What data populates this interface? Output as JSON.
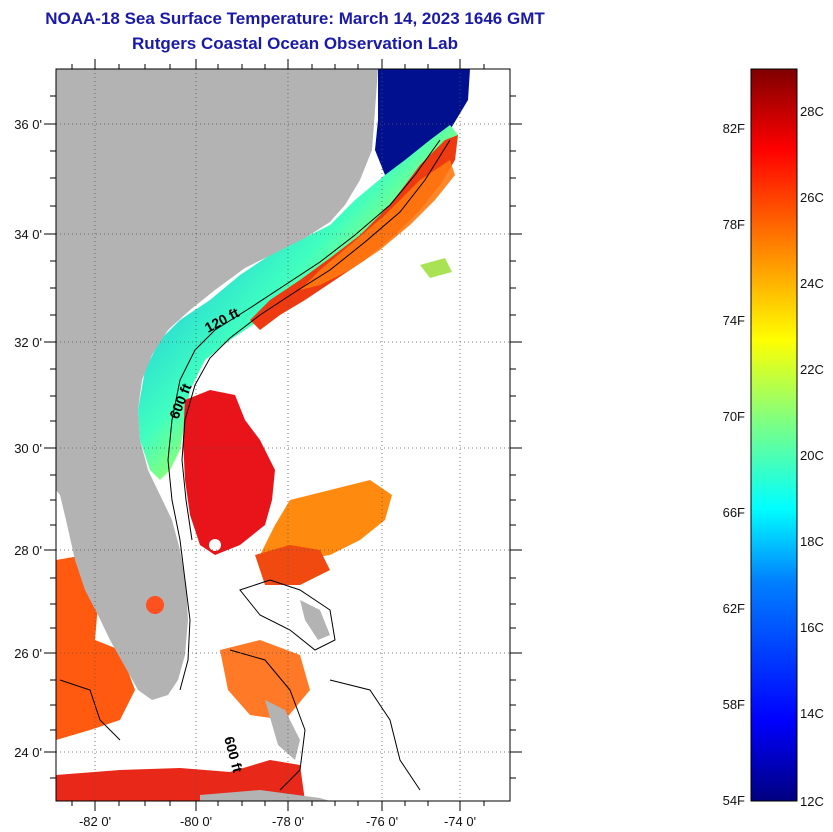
{
  "header": {
    "title": "NOAA-18 Sea Surface Temperature:  March 14, 2023 1646 GMT",
    "subtitle": "Rutgers Coastal Ocean Observation Lab"
  },
  "map": {
    "region": "Southeast US coast",
    "lon_labels": [
      "-82 0'",
      "-80 0'",
      "-78 0'",
      "-76 0'",
      "-74 0'"
    ],
    "lat_labels": [
      "36 0'",
      "34 0'",
      "32 0'",
      "30 0'",
      "28 0'",
      "26 0'",
      "24 0'"
    ],
    "contour_labels": [
      "120 ft",
      "600 ft",
      "600 ft"
    ],
    "land_color": "#b3b3b3"
  },
  "colorbar": {
    "min_c": 12,
    "max_c": 29,
    "fahrenheit_labels": [
      "82F",
      "78F",
      "74F",
      "70F",
      "66F",
      "62F",
      "58F",
      "54F"
    ],
    "celsius_labels": [
      "28C",
      "26C",
      "24C",
      "22C",
      "20C",
      "18C",
      "16C",
      "14C",
      "12C"
    ],
    "colors": [
      "#00007f",
      "#0000ff",
      "#0080ff",
      "#00ffff",
      "#80ff80",
      "#ffff00",
      "#ff8000",
      "#ff0000",
      "#7f0000"
    ]
  }
}
